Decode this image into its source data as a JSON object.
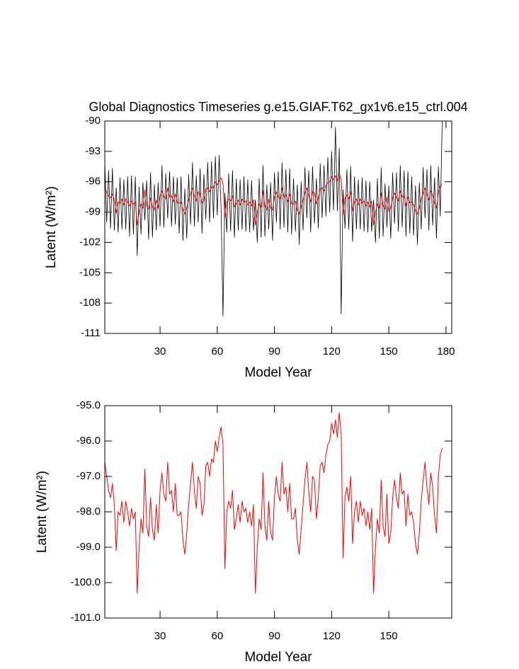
{
  "chart_data": [
    {
      "type": "line",
      "title": "Global Diagnostics Timeseries g.e15.GIAF.T62_gx1v6.e15_ctrl.004",
      "x_label": "Model Year",
      "y_label": "Latent (W/m²)",
      "x": [
        1,
        2,
        3,
        4,
        5,
        6,
        7,
        8,
        9,
        10,
        11,
        12,
        13,
        14,
        15,
        16,
        17,
        18,
        19,
        20,
        21,
        22,
        23,
        24,
        25,
        26,
        27,
        28,
        29,
        30,
        31,
        32,
        33,
        34,
        35,
        36,
        37,
        38,
        39,
        40,
        41,
        42,
        43,
        44,
        45,
        46,
        47,
        48,
        49,
        50,
        51,
        52,
        53,
        54,
        55,
        56,
        57,
        58,
        59,
        60,
        61,
        62,
        63,
        64,
        65,
        66,
        67,
        68,
        69,
        70,
        71,
        72,
        73,
        74,
        75,
        76,
        77,
        78,
        79,
        80,
        81,
        82,
        83,
        84,
        85,
        86,
        87,
        88,
        89,
        90,
        91,
        92,
        93,
        94,
        95,
        96,
        97,
        98,
        99,
        100,
        101,
        102,
        103,
        104,
        105,
        106,
        107,
        108,
        109,
        110,
        111,
        112,
        113,
        114,
        115,
        116,
        117,
        118,
        119,
        120,
        121,
        122,
        123,
        124,
        125,
        126,
        127,
        128,
        129,
        130,
        131,
        132,
        133,
        134,
        135,
        136,
        137,
        138,
        139,
        140,
        141,
        142,
        143,
        144,
        145,
        146,
        147,
        148,
        149,
        150,
        151,
        152,
        153,
        154,
        155,
        156,
        157,
        158,
        159,
        160,
        161,
        162,
        163,
        164,
        165,
        166,
        167,
        168,
        169,
        170,
        171,
        172,
        173,
        174,
        175,
        176,
        177,
        178
      ],
      "series": [
        {
          "color": "#000000",
          "values": [
            -94.1,
            -100.0,
            -94.9,
            -100.6,
            -94.7,
            -100.8,
            -96.6,
            -101.0,
            -95.6,
            -100.7,
            -95.8,
            -100.7,
            -95.5,
            -101.4,
            -95.4,
            -101.2,
            -95.5,
            -103.3,
            -96.5,
            -101.2,
            -96.1,
            -99.8,
            -95.9,
            -101.7,
            -95.1,
            -101.5,
            -96.3,
            -100.8,
            -96.1,
            -100.4,
            -94.4,
            -100.5,
            -95.2,
            -99.6,
            -95.0,
            -100.4,
            -95.5,
            -100.2,
            -95.6,
            -101.1,
            -95.5,
            -101.8,
            -96.7,
            -101.6,
            -95.3,
            -100.2,
            -94.1,
            -100.4,
            -95.4,
            -100.0,
            -94.7,
            -101.1,
            -95.3,
            -99.7,
            -94.1,
            -100.0,
            -94.0,
            -99.6,
            -93.5,
            -99.3,
            -93.4,
            -98.6,
            -109.3,
            -97.1,
            -101.0,
            -95.2,
            -100.9,
            -94.9,
            -101.5,
            -95.7,
            -100.8,
            -95.8,
            -100.7,
            -95.5,
            -100.9,
            -95.8,
            -101.0,
            -95.9,
            -100.8,
            -97.8,
            -102.0,
            -95.7,
            -101.5,
            -94.4,
            -101.4,
            -96.3,
            -100.7,
            -96.1,
            -101.8,
            -95.1,
            -100.0,
            -95.0,
            -100.7,
            -94.1,
            -100.5,
            -94.8,
            -101.0,
            -94.7,
            -101.2,
            -95.7,
            -100.9,
            -96.3,
            -102.2,
            -96.0,
            -100.8,
            -94.6,
            -99.6,
            -94.9,
            -101.0,
            -94.5,
            -100.1,
            -95.7,
            -100.6,
            -94.2,
            -99.6,
            -94.4,
            -99.4,
            -93.6,
            -99.0,
            -93.0,
            -98.8,
            -90.6,
            -98.9,
            -92.7,
            -109.1,
            -96.8,
            -100.6,
            -94.8,
            -100.7,
            -94.5,
            -101.9,
            -95.5,
            -100.7,
            -95.8,
            -100.7,
            -95.6,
            -100.9,
            -95.9,
            -101.0,
            -96.0,
            -100.9,
            -97.8,
            -102.0,
            -95.7,
            -101.6,
            -94.6,
            -101.4,
            -96.2,
            -100.5,
            -96.4,
            -101.6,
            -95.1,
            -100.1,
            -95.1,
            -100.9,
            -94.4,
            -100.5,
            -94.9,
            -101.4,
            -95.0,
            -101.1,
            -95.5,
            -101.3,
            -96.4,
            -102.2,
            -96.1,
            -100.7,
            -94.6,
            -99.6,
            -94.8,
            -100.8,
            -94.4,
            -100.3,
            -95.6,
            -101.6,
            -94.5,
            -99.4,
            -90.0
          ]
        },
        {
          "color": "#ff0000",
          "values": [
            -96.6,
            -97.0,
            -97.4,
            -97.6,
            -97.2,
            -97.8,
            -99.1,
            -98.0,
            -98.1,
            -97.7,
            -98.3,
            -97.7,
            -98.0,
            -98.4,
            -97.9,
            -98.2,
            -98.0,
            -100.3,
            -99.0,
            -98.2,
            -98.6,
            -96.8,
            -98.4,
            -98.7,
            -97.6,
            -98.5,
            -98.8,
            -97.8,
            -98.6,
            -97.4,
            -96.9,
            -97.5,
            -97.7,
            -96.6,
            -97.5,
            -97.4,
            -98.0,
            -97.2,
            -98.1,
            -98.1,
            -98.0,
            -98.8,
            -99.2,
            -98.6,
            -97.8,
            -97.2,
            -96.6,
            -97.4,
            -97.9,
            -97.0,
            -97.2,
            -98.1,
            -97.8,
            -96.7,
            -96.6,
            -97.0,
            -96.5,
            -96.6,
            -96.0,
            -96.3,
            -95.9,
            -95.6,
            -96.1,
            -99.6,
            -98.0,
            -97.7,
            -97.9,
            -97.4,
            -98.5,
            -98.2,
            -97.8,
            -98.3,
            -97.7,
            -98.0,
            -97.9,
            -98.3,
            -98.0,
            -98.4,
            -97.8,
            -100.3,
            -99.0,
            -98.2,
            -98.5,
            -96.9,
            -98.4,
            -98.8,
            -97.7,
            -98.6,
            -98.8,
            -97.6,
            -97.0,
            -97.5,
            -97.7,
            -96.6,
            -97.5,
            -97.3,
            -98.0,
            -97.2,
            -98.2,
            -98.2,
            -97.9,
            -98.8,
            -99.2,
            -98.5,
            -97.8,
            -97.1,
            -96.6,
            -97.4,
            -98.0,
            -97.0,
            -97.1,
            -98.2,
            -97.6,
            -96.7,
            -96.6,
            -96.9,
            -96.4,
            -96.1,
            -96.0,
            -95.5,
            -95.8,
            -95.4,
            -95.9,
            -95.2,
            -95.8,
            -99.3,
            -97.6,
            -97.3,
            -97.7,
            -97.0,
            -98.9,
            -98.0,
            -97.7,
            -98.3,
            -97.7,
            -98.1,
            -97.9,
            -98.4,
            -98.0,
            -98.5,
            -97.9,
            -100.3,
            -99.0,
            -98.2,
            -98.6,
            -97.1,
            -98.4,
            -98.7,
            -97.5,
            -98.9,
            -98.6,
            -97.6,
            -97.1,
            -97.6,
            -97.9,
            -96.9,
            -97.5,
            -97.4,
            -98.4,
            -97.5,
            -98.1,
            -98.0,
            -98.3,
            -98.9,
            -99.2,
            -98.6,
            -97.7,
            -97.1,
            -96.6,
            -97.3,
            -97.8,
            -96.9,
            -97.3,
            -98.1,
            -98.6,
            -97.0,
            -96.4,
            -96.2
          ]
        }
      ],
      "xlim": [
        1,
        183
      ],
      "ylim": [
        -111,
        -90
      ],
      "xticks": [
        30,
        60,
        90,
        120,
        150,
        180
      ],
      "yticks": [
        -90,
        -93,
        -96,
        -99,
        -102,
        -105,
        -108,
        -111
      ]
    },
    {
      "type": "line",
      "x_label": "Model Year",
      "y_label": "Latent (W/m²)",
      "x": [
        1,
        2,
        3,
        4,
        5,
        6,
        7,
        8,
        9,
        10,
        11,
        12,
        13,
        14,
        15,
        16,
        17,
        18,
        19,
        20,
        21,
        22,
        23,
        24,
        25,
        26,
        27,
        28,
        29,
        30,
        31,
        32,
        33,
        34,
        35,
        36,
        37,
        38,
        39,
        40,
        41,
        42,
        43,
        44,
        45,
        46,
        47,
        48,
        49,
        50,
        51,
        52,
        53,
        54,
        55,
        56,
        57,
        58,
        59,
        60,
        61,
        62,
        63,
        64,
        65,
        66,
        67,
        68,
        69,
        70,
        71,
        72,
        73,
        74,
        75,
        76,
        77,
        78,
        79,
        80,
        81,
        82,
        83,
        84,
        85,
        86,
        87,
        88,
        89,
        90,
        91,
        92,
        93,
        94,
        95,
        96,
        97,
        98,
        99,
        100,
        101,
        102,
        103,
        104,
        105,
        106,
        107,
        108,
        109,
        110,
        111,
        112,
        113,
        114,
        115,
        116,
        117,
        118,
        119,
        120,
        121,
        122,
        123,
        124,
        125,
        126,
        127,
        128,
        129,
        130,
        131,
        132,
        133,
        134,
        135,
        136,
        137,
        138,
        139,
        140,
        141,
        142,
        143,
        144,
        145,
        146,
        147,
        148,
        149,
        150,
        151,
        152,
        153,
        154,
        155,
        156,
        157,
        158,
        159,
        160,
        161,
        162,
        163,
        164,
        165,
        166,
        167,
        168,
        169,
        170,
        171,
        172,
        173,
        174,
        175,
        176,
        177,
        178
      ],
      "series": [
        {
          "color": "#ff0000",
          "values": [
            -96.6,
            -97.0,
            -97.4,
            -97.6,
            -97.2,
            -97.8,
            -99.1,
            -98.0,
            -98.1,
            -97.7,
            -98.3,
            -97.7,
            -98.0,
            -98.4,
            -97.9,
            -98.2,
            -98.0,
            -100.3,
            -99.0,
            -98.2,
            -98.6,
            -96.8,
            -98.4,
            -98.7,
            -97.6,
            -98.5,
            -98.8,
            -97.8,
            -98.6,
            -97.4,
            -96.9,
            -97.5,
            -97.7,
            -96.6,
            -97.5,
            -97.4,
            -98.0,
            -97.2,
            -98.1,
            -98.1,
            -98.0,
            -98.8,
            -99.2,
            -98.6,
            -97.8,
            -97.2,
            -96.6,
            -97.4,
            -97.9,
            -97.0,
            -97.2,
            -98.1,
            -97.8,
            -96.7,
            -96.6,
            -97.0,
            -96.5,
            -96.6,
            -96.0,
            -96.3,
            -95.9,
            -95.6,
            -96.1,
            -99.6,
            -98.0,
            -97.7,
            -97.9,
            -97.4,
            -98.5,
            -98.2,
            -97.8,
            -98.3,
            -97.7,
            -98.0,
            -97.9,
            -98.3,
            -98.0,
            -98.4,
            -97.8,
            -100.3,
            -99.0,
            -98.2,
            -98.5,
            -96.9,
            -98.4,
            -98.8,
            -97.7,
            -98.6,
            -98.8,
            -97.6,
            -97.0,
            -97.5,
            -97.7,
            -96.6,
            -97.5,
            -97.3,
            -98.0,
            -97.2,
            -98.2,
            -98.2,
            -97.9,
            -98.8,
            -99.2,
            -98.5,
            -97.8,
            -97.1,
            -96.6,
            -97.4,
            -98.0,
            -97.0,
            -97.1,
            -98.2,
            -97.6,
            -96.7,
            -96.6,
            -96.9,
            -96.4,
            -96.1,
            -96.0,
            -95.5,
            -95.8,
            -95.4,
            -95.9,
            -95.2,
            -95.8,
            -99.3,
            -97.6,
            -97.3,
            -97.7,
            -97.0,
            -98.9,
            -98.0,
            -97.7,
            -98.3,
            -97.7,
            -98.1,
            -97.9,
            -98.4,
            -98.0,
            -98.5,
            -97.9,
            -100.3,
            -99.0,
            -98.2,
            -98.6,
            -97.1,
            -98.4,
            -98.7,
            -97.5,
            -98.9,
            -98.6,
            -97.6,
            -97.1,
            -97.6,
            -97.9,
            -96.9,
            -97.5,
            -97.4,
            -98.4,
            -97.5,
            -98.1,
            -98.0,
            -98.3,
            -98.9,
            -99.2,
            -98.6,
            -97.7,
            -97.1,
            -96.6,
            -97.3,
            -97.8,
            -96.9,
            -97.3,
            -98.1,
            -98.6,
            -97.0,
            -96.4,
            -96.2
          ]
        }
      ],
      "xlim": [
        1,
        183
      ],
      "ylim": [
        -101,
        -95
      ],
      "xticks": [
        30,
        60,
        90,
        120,
        150
      ],
      "yticks": [
        {
          "value": -95,
          "label": "-95.0"
        },
        {
          "value": -96,
          "label": "-96.0"
        },
        {
          "value": -97,
          "label": "-97.0"
        },
        {
          "value": -98,
          "label": "-98.0"
        },
        {
          "value": -99,
          "label": "-99.0"
        },
        {
          "value": -100,
          "label": "-100.0"
        },
        {
          "value": -101,
          "label": "-101.0"
        }
      ]
    }
  ]
}
